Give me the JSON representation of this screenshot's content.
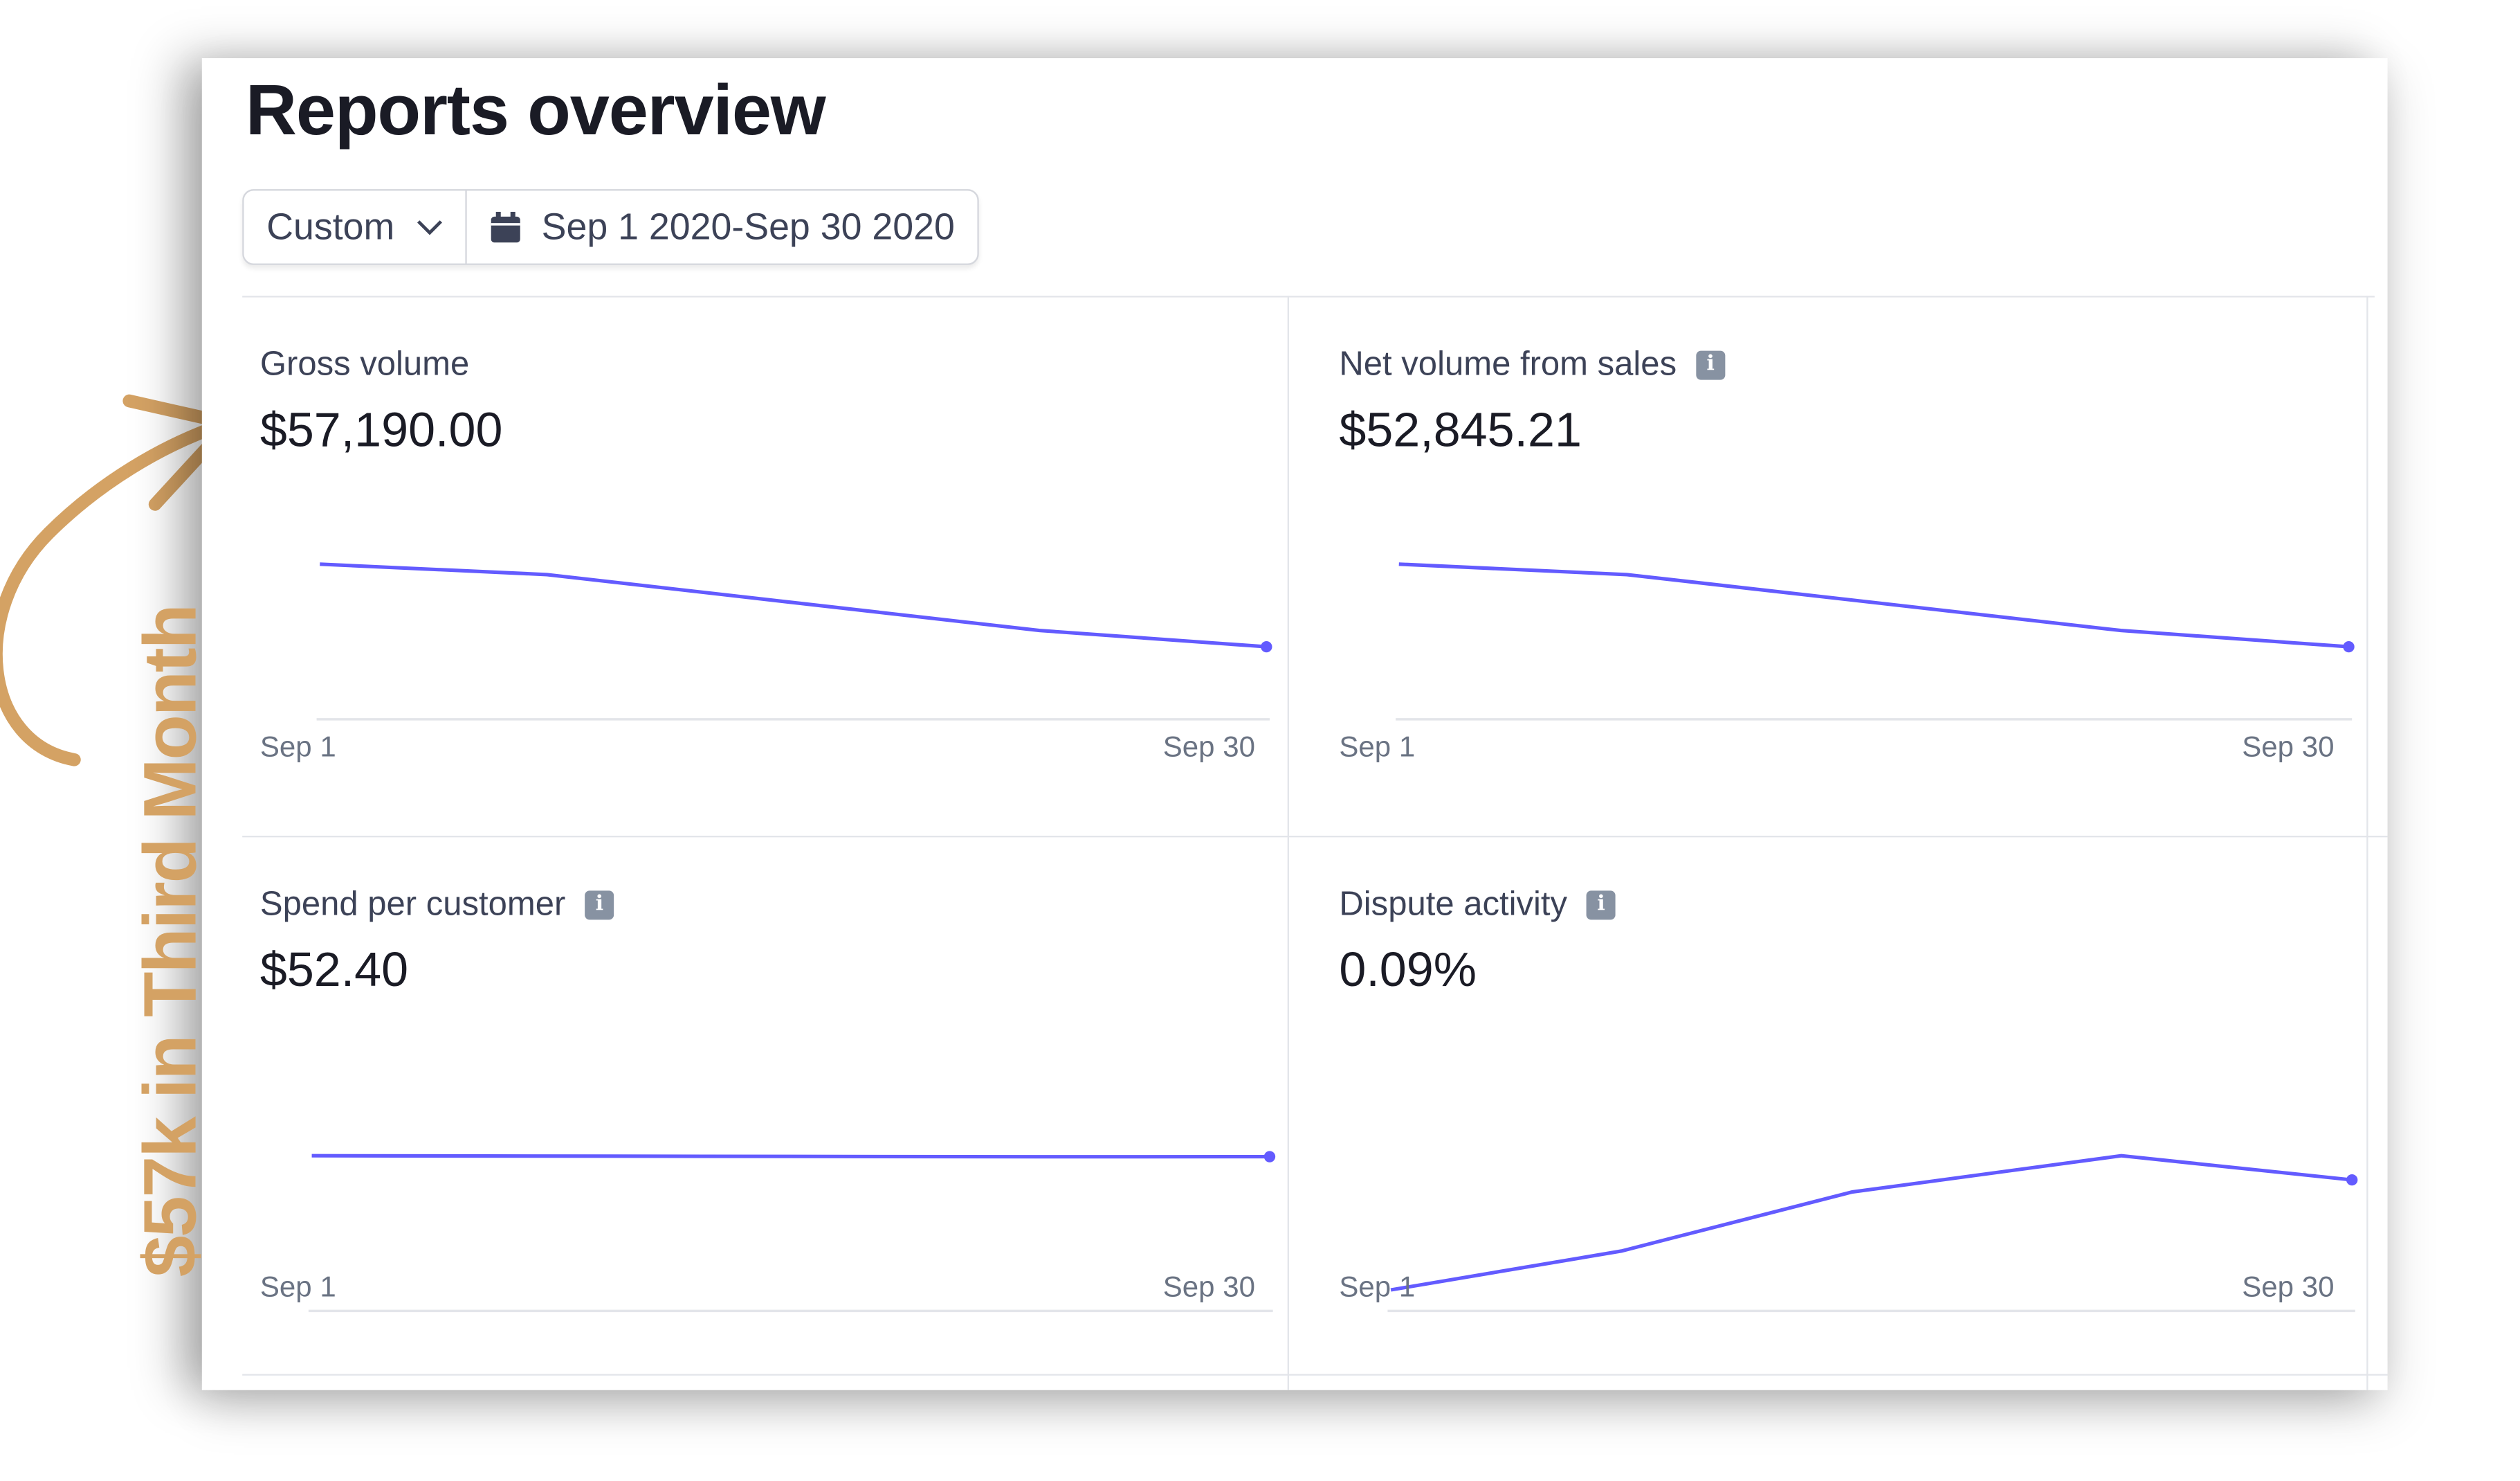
{
  "header": {
    "title": "Reports overview"
  },
  "filter": {
    "preset_label": "Custom",
    "date_range": "Sep 1 2020-Sep 30 2020"
  },
  "annotation": {
    "text": "$57k in Third Month",
    "color": "#d4a264"
  },
  "colors": {
    "line": "#635bff",
    "text": "#1a1b25",
    "muted": "#6a7383"
  },
  "panels": [
    {
      "label": "Gross volume",
      "value": "$57,190.00",
      "info": false,
      "x_start": "Sep 1",
      "x_end": "Sep 30"
    },
    {
      "label": "Net volume from sales",
      "value": "$52,845.21",
      "info": true,
      "x_start": "Sep 1",
      "x_end": "Sep 30"
    },
    {
      "label": "Spend per customer",
      "value": "$52.40",
      "info": true,
      "x_start": "Sep 1",
      "x_end": "Sep 30"
    },
    {
      "label": "Dispute activity",
      "value": "0.09%",
      "info": true,
      "x_start": "Sep 1",
      "x_end": "Sep 30"
    }
  ],
  "chart_data": [
    {
      "type": "line",
      "title": "Gross volume",
      "x": [
        1,
        7,
        20,
        26
      ],
      "y": [
        100,
        91,
        43,
        29
      ],
      "ylim": [
        0,
        100
      ],
      "relative": true
    },
    {
      "type": "line",
      "title": "Net volume from sales",
      "x": [
        1,
        7,
        20,
        26
      ],
      "y": [
        100,
        91,
        43,
        29
      ],
      "ylim": [
        0,
        100
      ],
      "relative": true
    },
    {
      "type": "line",
      "title": "Spend per customer",
      "x": [
        1,
        20,
        26
      ],
      "y": [
        100,
        92,
        93
      ],
      "ylim": [
        0,
        100
      ],
      "relative": true
    },
    {
      "type": "line",
      "title": "Dispute activity",
      "x": [
        1,
        7,
        13,
        20,
        26
      ],
      "y": [
        0,
        29,
        73,
        100,
        82
      ],
      "ylim": [
        0,
        100
      ],
      "relative": true
    }
  ]
}
